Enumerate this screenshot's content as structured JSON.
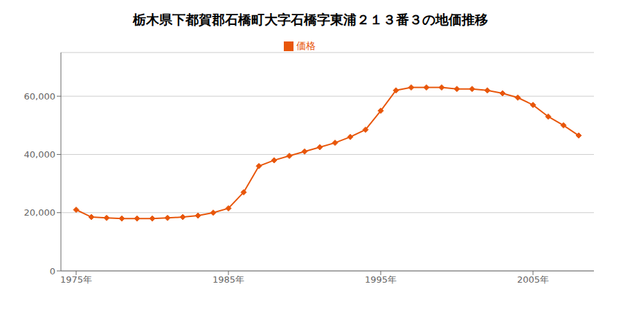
{
  "chart_data": {
    "type": "line",
    "title": "栃木県下都賀郡石橋町大字石橋字東浦２１３番３の地価推移",
    "x": [
      1975,
      1976,
      1977,
      1978,
      1979,
      1980,
      1981,
      1982,
      1983,
      1984,
      1985,
      1986,
      1987,
      1988,
      1989,
      1990,
      1991,
      1992,
      1993,
      1994,
      1995,
      1996,
      1997,
      1998,
      1999,
      2000,
      2001,
      2002,
      2003,
      2004,
      2005,
      2006,
      2007,
      2008
    ],
    "series": [
      {
        "name": "価格",
        "color": "#e8560a",
        "marker": "diamond",
        "values": [
          21000,
          18500,
          18200,
          18000,
          18000,
          18000,
          18200,
          18500,
          19000,
          20000,
          21500,
          27000,
          36000,
          38000,
          39500,
          41000,
          42500,
          44000,
          46000,
          48500,
          55000,
          62000,
          63000,
          63000,
          63000,
          62500,
          62500,
          62000,
          61000,
          59500,
          57000,
          53000,
          50000,
          46500
        ]
      }
    ],
    "xlim": [
      1974,
      2009
    ],
    "xticks": [
      {
        "value": 1975,
        "label": "1975年"
      },
      {
        "value": 1985,
        "label": "1985年"
      },
      {
        "value": 1995,
        "label": "1995年"
      },
      {
        "value": 2005,
        "label": "2005年"
      }
    ],
    "ylim": [
      0,
      75000
    ],
    "yticks": [
      0,
      {
        "value": 20000,
        "label": "20,000"
      },
      {
        "value": 40000,
        "label": "40,000"
      },
      {
        "value": 60000,
        "label": "60,000"
      }
    ],
    "grid": "y",
    "legend": "top"
  }
}
